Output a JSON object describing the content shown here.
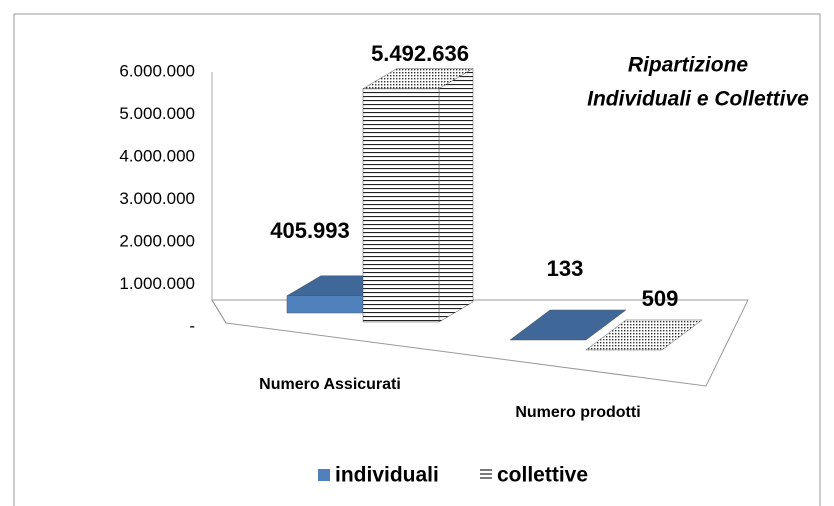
{
  "chart_data": {
    "type": "bar3d",
    "title": [
      "Ripartizione",
      "Individuali e Collettive"
    ],
    "categories": [
      "Numero Assicurati",
      "Numero prodotti"
    ],
    "series": [
      {
        "name": "individuali",
        "color": "#4f81bd",
        "values": [
          405993,
          133
        ],
        "value_labels": [
          "405.993",
          "133"
        ]
      },
      {
        "name": "collettive",
        "color": "#ffffff",
        "pattern": "horizontal-stripes",
        "values": [
          5492636,
          509
        ],
        "value_labels": [
          "5.492.636",
          "509"
        ]
      }
    ],
    "ylim": [
      0,
      6000000
    ],
    "yticks": [
      {
        "value": 0,
        "label": "-"
      },
      {
        "value": 1000000,
        "label": "1.000.000"
      },
      {
        "value": 2000000,
        "label": "2.000.000"
      },
      {
        "value": 3000000,
        "label": "3.000.000"
      },
      {
        "value": 4000000,
        "label": "4.000.000"
      },
      {
        "value": 5000000,
        "label": "5.000.000"
      },
      {
        "value": 6000000,
        "label": "6.000.000"
      }
    ],
    "grid": false,
    "legend": "bottom"
  }
}
